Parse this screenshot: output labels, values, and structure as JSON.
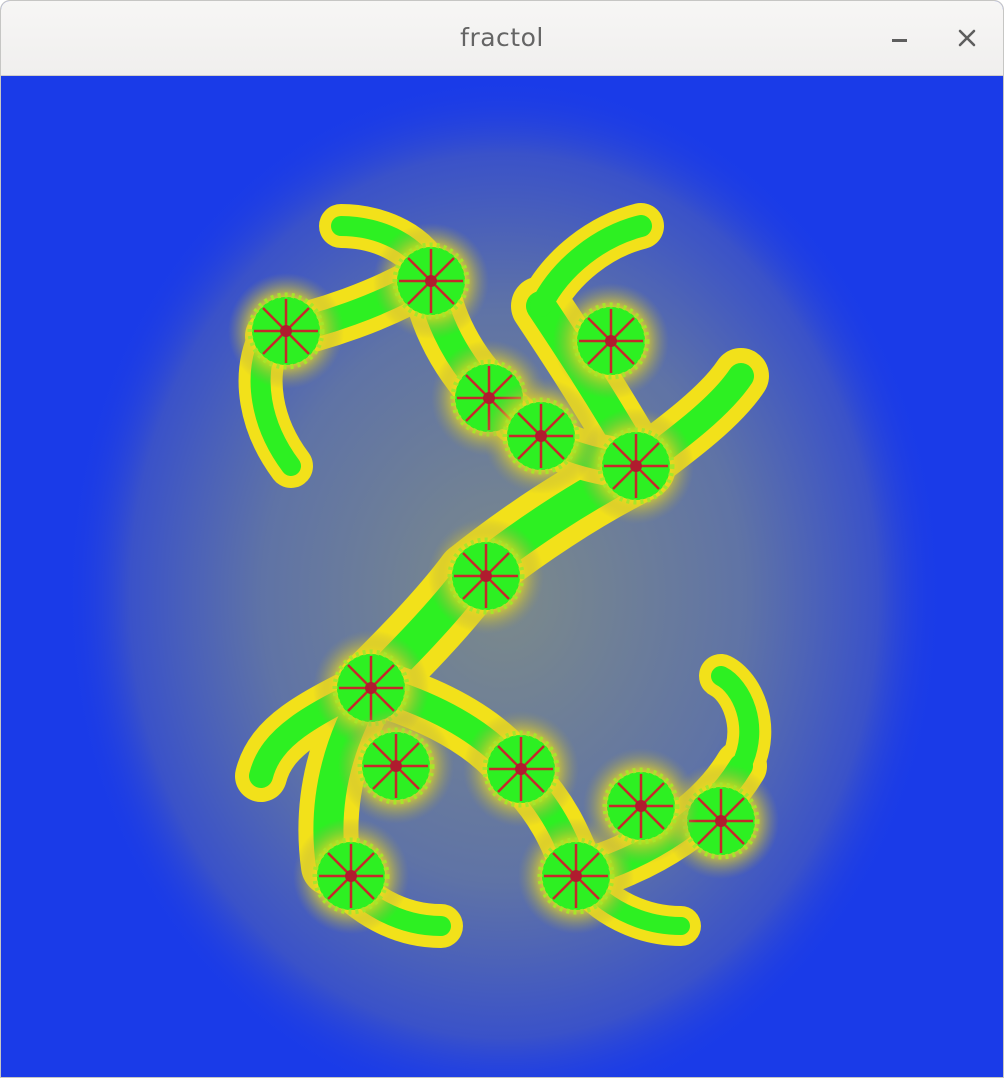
{
  "window": {
    "title": "fractol",
    "minimize_icon": "minimize-icon",
    "close_icon": "close-icon"
  },
  "fractal": {
    "type": "julia",
    "background_color": "#1a3be8",
    "halo_color": "#5b6ea0",
    "fringe_color": "#f2e11a",
    "body_color": "#2cf023",
    "core_color": "#c6282a"
  }
}
